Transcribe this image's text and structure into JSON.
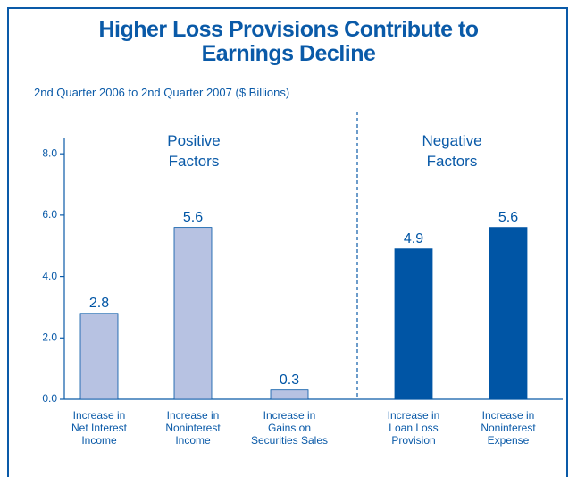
{
  "chart_data": {
    "type": "bar",
    "title": "Higher Loss Provisions Contribute to\nEarnings Decline",
    "subtitle": "2nd Quarter 2006 to 2nd Quarter 2007 ($ Billions)",
    "group_labels": [
      "Positive\nFactors",
      "Negative\nFactors"
    ],
    "categories": [
      "Increase in\nNet Interest\nIncome",
      "Increase in\nNoninterest\nIncome",
      "Increase in\nGains on\nSecurities Sales",
      "Increase in\nLoan Loss\nProvision",
      "Increase in\nNoninterest\nExpense"
    ],
    "values": [
      2.8,
      5.6,
      0.3,
      4.9,
      5.6
    ],
    "colors": [
      "#b7c2e2",
      "#b7c2e2",
      "#b7c2e2",
      "#0055a5",
      "#0055a5"
    ],
    "ylim": [
      0,
      8.5
    ],
    "yticks": [
      {
        "value": 0,
        "label": "0.0"
      },
      {
        "value": 2,
        "label": "2.0"
      },
      {
        "value": 4,
        "label": "4.0"
      },
      {
        "value": 6,
        "label": "6.0"
      },
      {
        "value": 8,
        "label": "8.0"
      }
    ]
  }
}
